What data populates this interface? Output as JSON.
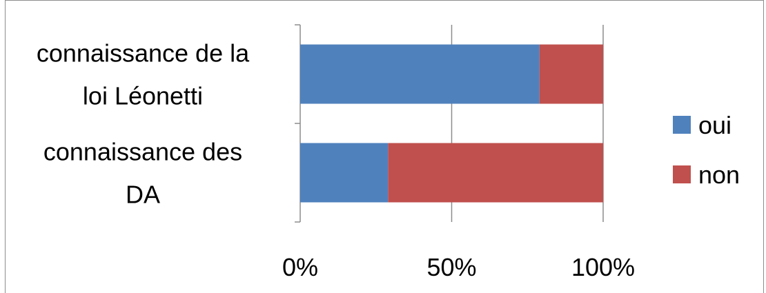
{
  "chart_data": {
    "type": "bar",
    "orientation": "horizontal",
    "stacked": true,
    "percent": true,
    "categories": [
      "connaissance de la loi Léonetti",
      "connaissance des DA"
    ],
    "category_label_lines": [
      [
        "connaissance de la",
        "loi Léonetti"
      ],
      [
        "connaissance des",
        "DA"
      ]
    ],
    "series": [
      {
        "name": "oui",
        "color": "#4f81bd",
        "values": [
          79,
          29
        ]
      },
      {
        "name": "non",
        "color": "#c0504d",
        "values": [
          21,
          71
        ]
      }
    ],
    "xlim": [
      0,
      100
    ],
    "xticks": [
      "0%",
      "50%",
      "100%"
    ],
    "grid": true,
    "legend": "right"
  }
}
